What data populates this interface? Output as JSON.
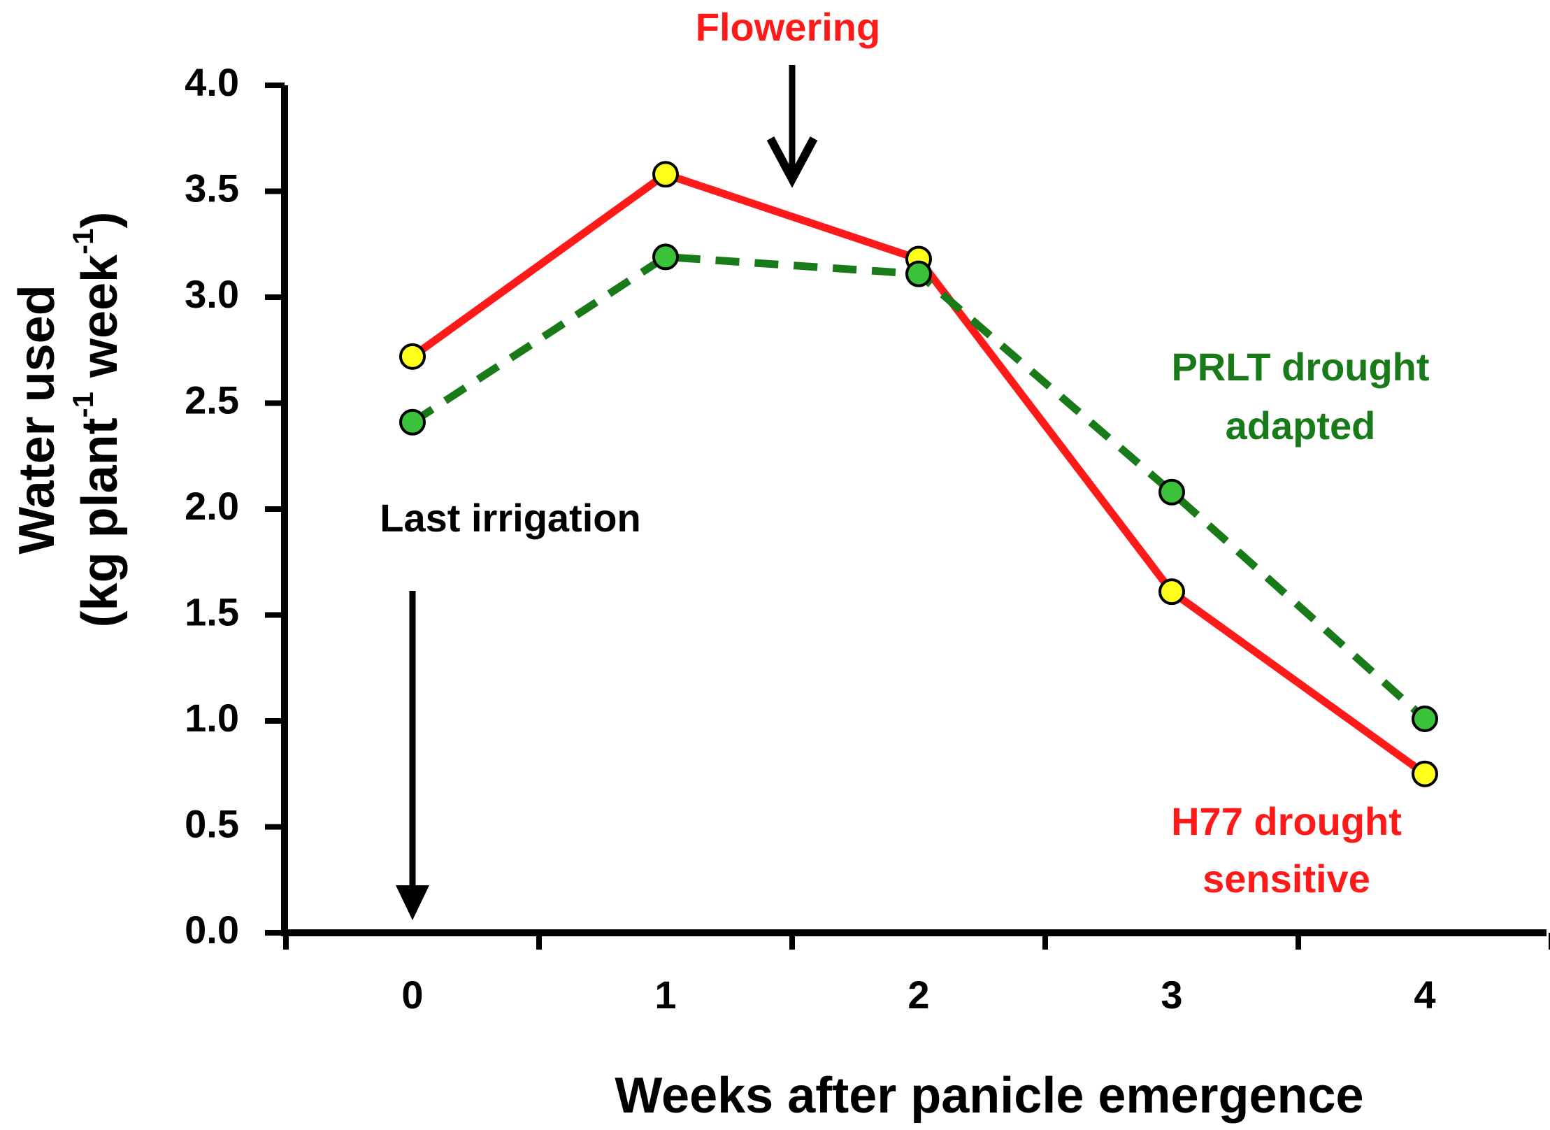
{
  "chart_data": {
    "type": "line",
    "title": "",
    "xlabel": "Weeks after panicle emergence",
    "ylabel_line1": "Water used",
    "ylabel_line2_prefix": "(kg plant",
    "ylabel_sup1": "-1",
    "ylabel_line2_mid": " week",
    "ylabel_sup2": "-1",
    "ylabel_line2_suffix": ")",
    "x": [
      0,
      1,
      2,
      3,
      4
    ],
    "x_tick_labels": [
      "0",
      "1",
      "2",
      "3",
      "4"
    ],
    "xlim": [
      -0.5,
      4.5
    ],
    "ylim": [
      0,
      4.0
    ],
    "y_ticks": [
      0,
      0.5,
      1.0,
      1.5,
      2.0,
      2.5,
      3.0,
      3.5,
      4.0
    ],
    "y_tick_labels": [
      "0.0",
      "0.5",
      "1.0",
      "1.5",
      "2.0",
      "2.5",
      "3.0",
      "3.5",
      "4.0"
    ],
    "grid": false,
    "series": [
      {
        "name": "H77 drought sensitive",
        "label_line1": "H77 drought",
        "label_line2": "sensitive",
        "values": [
          2.72,
          3.58,
          3.18,
          1.61,
          0.75
        ],
        "line_color": "#ff1a1a",
        "marker_color": "#ffff1a",
        "dash": "solid"
      },
      {
        "name": "PRLT drought adapted",
        "label_line1": "PRLT drought",
        "label_line2": "adapted",
        "values": [
          2.41,
          3.19,
          3.11,
          2.08,
          1.01
        ],
        "line_color": "#187a18",
        "marker_color": "#3ac23a",
        "dash": "dashed"
      }
    ],
    "annotations": {
      "flowering": {
        "text": "Flowering",
        "x": 1.5,
        "color": "#ff1a1a"
      },
      "last_irrigation": {
        "text": "Last irrigation",
        "x": 0,
        "color": "#000000"
      }
    }
  }
}
